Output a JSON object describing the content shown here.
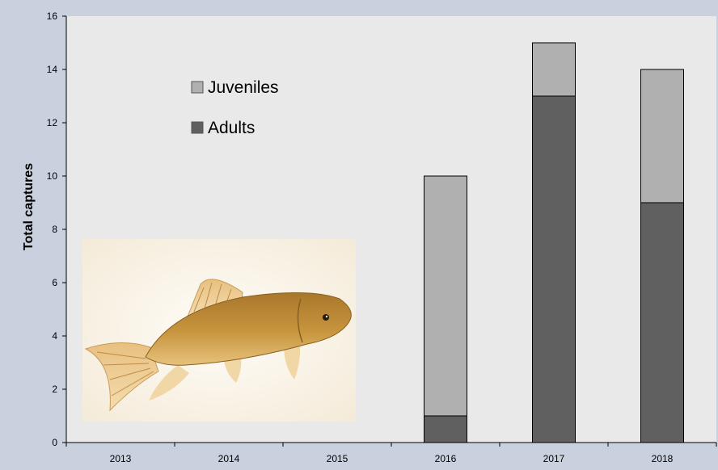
{
  "chart_data": {
    "type": "bar",
    "stacked": true,
    "categories": [
      "2013",
      "2014",
      "2015",
      "2016",
      "2017",
      "2018"
    ],
    "series": [
      {
        "name": "Adults",
        "values": [
          0,
          0,
          0,
          1,
          13,
          9
        ],
        "color": "#606060"
      },
      {
        "name": "Juveniles",
        "values": [
          0,
          0,
          0,
          9,
          2,
          5
        ],
        "color": "#b0b0b0"
      }
    ],
    "title": "",
    "xlabel": "",
    "ylabel": "Total captures",
    "ylim": [
      0,
      16
    ],
    "yticks": [
      0,
      2,
      4,
      6,
      8,
      10,
      12,
      14,
      16
    ],
    "grid": false,
    "legend": {
      "placement": "top-left",
      "order": [
        "Juveniles",
        "Adults"
      ]
    },
    "plot_background": "#e9e9e9",
    "inset_image": "fish-photo"
  }
}
